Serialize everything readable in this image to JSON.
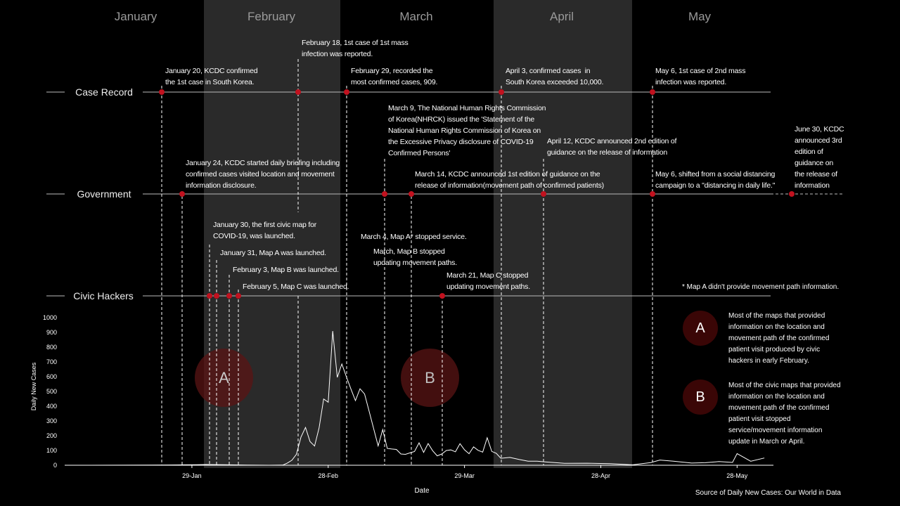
{
  "months": [
    "January",
    "February",
    "March",
    "April",
    "May"
  ],
  "tracks": {
    "case_record": "Case Record",
    "government": "Government",
    "civic_hackers": "Civic Hackers"
  },
  "annotations": {
    "jan20": "January 20, KCDC confirmed\nthe 1st case in South Korea.",
    "feb18": "February 18, 1st case of 1st mass\ninfection was reported.",
    "feb29": "February 29, recorded the\nmost confirmed cases, 909.",
    "apr3": "April 3, confirmed cases  in\nSouth Korea exceeded 10,000.",
    "may6a": "May 6, 1st case of 2nd mass\ninfection was reported.",
    "mar9": "March 9, The National Human Rights Commission\nof Korea(NHRCK) issued the 'Statement of the\nNational Human Rights Commission of Korea on\nthe Excessive Privacy disclosure of COVID-19\nConfirmed Persons'",
    "apr12": "April 12, KCDC announced 2nd edition of\nguidance on the release of information",
    "jun30": "June 30, KCDC\nannounced 3rd\nedition of\nguidance on\nthe release of\ninformation",
    "jan24": "January 24, KCDC started daily briefing including\nconfirmed cases visited location and movement\ninformation disclosure.",
    "mar14": "March 14, KCDC announced 1st edition of guidance on the\nrelease of information(movement path of confirmed patients)",
    "may6b": "May 6, shifted from a social distancing\ncampaign to a \"distancing in daily life.\"",
    "jan30": "January 30, the first civic map for\nCOVID-19, was launched.",
    "jan31": "January 31, Map A was launched.",
    "feb3": "February 3, Map B was launched.",
    "feb5": "February 5, Map C was launched.",
    "mar4": "March 4, Map A* stopped service.",
    "marB": "March, Map B stopped\nupdating movement paths.",
    "mar21": "March 21, Map C stopped\nupdating movement paths."
  },
  "note": "* Map A didn't provide movement path information.",
  "legend": {
    "a_label": "A",
    "a_text": "Most of the maps that provided\ninformation on the location and\nmovement path of the confirmed\npatient visit produced by civic\nhackers in early February.",
    "b_label": "B",
    "b_text": "Most of the civic maps that provided\ninformation on the location and\nmovement path of the confirmed\npatient visit stopped\nservice/movement information\nupdate in March or April."
  },
  "source": "Source of Daily New Cases: Our World in Data",
  "colors": {
    "marker": "#c1121f",
    "band": "#2a2a2a",
    "circle_fill": "#5a1414",
    "line": "#ffffff"
  },
  "chart_data": {
    "type": "line",
    "xlabel": "Date",
    "ylabel": "Daily New Cases",
    "x_ticks": [
      "29-Jan",
      "28-Feb",
      "29-Mar",
      "28-Apr",
      "28-May"
    ],
    "y_ticks": [
      0,
      100,
      200,
      300,
      400,
      500,
      600,
      700,
      800,
      900,
      1000
    ],
    "ylim": [
      0,
      1000
    ],
    "x_start": "2020-01-01",
    "x_end": "2020-06-05",
    "series": [
      {
        "name": "",
        "x": [
          "2020-01-20",
          "2020-01-24",
          "2020-01-27",
          "2020-01-30",
          "2020-02-01",
          "2020-02-05",
          "2020-02-10",
          "2020-02-15",
          "2020-02-18",
          "2020-02-19",
          "2020-02-20",
          "2020-02-21",
          "2020-02-22",
          "2020-02-23",
          "2020-02-24",
          "2020-02-25",
          "2020-02-26",
          "2020-02-27",
          "2020-02-28",
          "2020-02-29",
          "2020-03-01",
          "2020-03-02",
          "2020-03-03",
          "2020-03-04",
          "2020-03-05",
          "2020-03-06",
          "2020-03-07",
          "2020-03-08",
          "2020-03-09",
          "2020-03-10",
          "2020-03-11",
          "2020-03-12",
          "2020-03-13",
          "2020-03-14",
          "2020-03-15",
          "2020-03-16",
          "2020-03-17",
          "2020-03-18",
          "2020-03-19",
          "2020-03-20",
          "2020-03-21",
          "2020-03-22",
          "2020-03-23",
          "2020-03-24",
          "2020-03-25",
          "2020-03-26",
          "2020-03-27",
          "2020-03-28",
          "2020-03-29",
          "2020-03-30",
          "2020-03-31",
          "2020-04-01",
          "2020-04-02",
          "2020-04-03",
          "2020-04-04",
          "2020-04-05",
          "2020-04-06",
          "2020-04-08",
          "2020-04-10",
          "2020-04-12",
          "2020-04-14",
          "2020-04-16",
          "2020-04-20",
          "2020-04-25",
          "2020-04-30",
          "2020-05-05",
          "2020-05-09",
          "2020-05-11",
          "2020-05-14",
          "2020-05-18",
          "2020-05-21",
          "2020-05-24",
          "2020-05-27",
          "2020-05-28",
          "2020-05-31",
          "2020-06-03"
        ],
        "values": [
          1,
          2,
          3,
          4,
          5,
          4,
          1,
          0,
          1,
          15,
          34,
          74,
          190,
          256,
          161,
          130,
          253,
          449,
          427,
          909,
          595,
          686,
          600,
          516,
          438,
          518,
          483,
          367,
          248,
          131,
          242,
          114,
          110,
          107,
          76,
          74,
          84,
          93,
          152,
          87,
          147,
          98,
          64,
          76,
          100,
          104,
          91,
          146,
          105,
          78,
          125,
          101,
          89,
          186,
          94,
          81,
          47,
          53,
          39,
          27,
          27,
          22,
          13,
          14,
          11,
          3,
          18,
          35,
          27,
          15,
          17,
          25,
          19,
          79,
          27,
          49
        ]
      }
    ]
  }
}
